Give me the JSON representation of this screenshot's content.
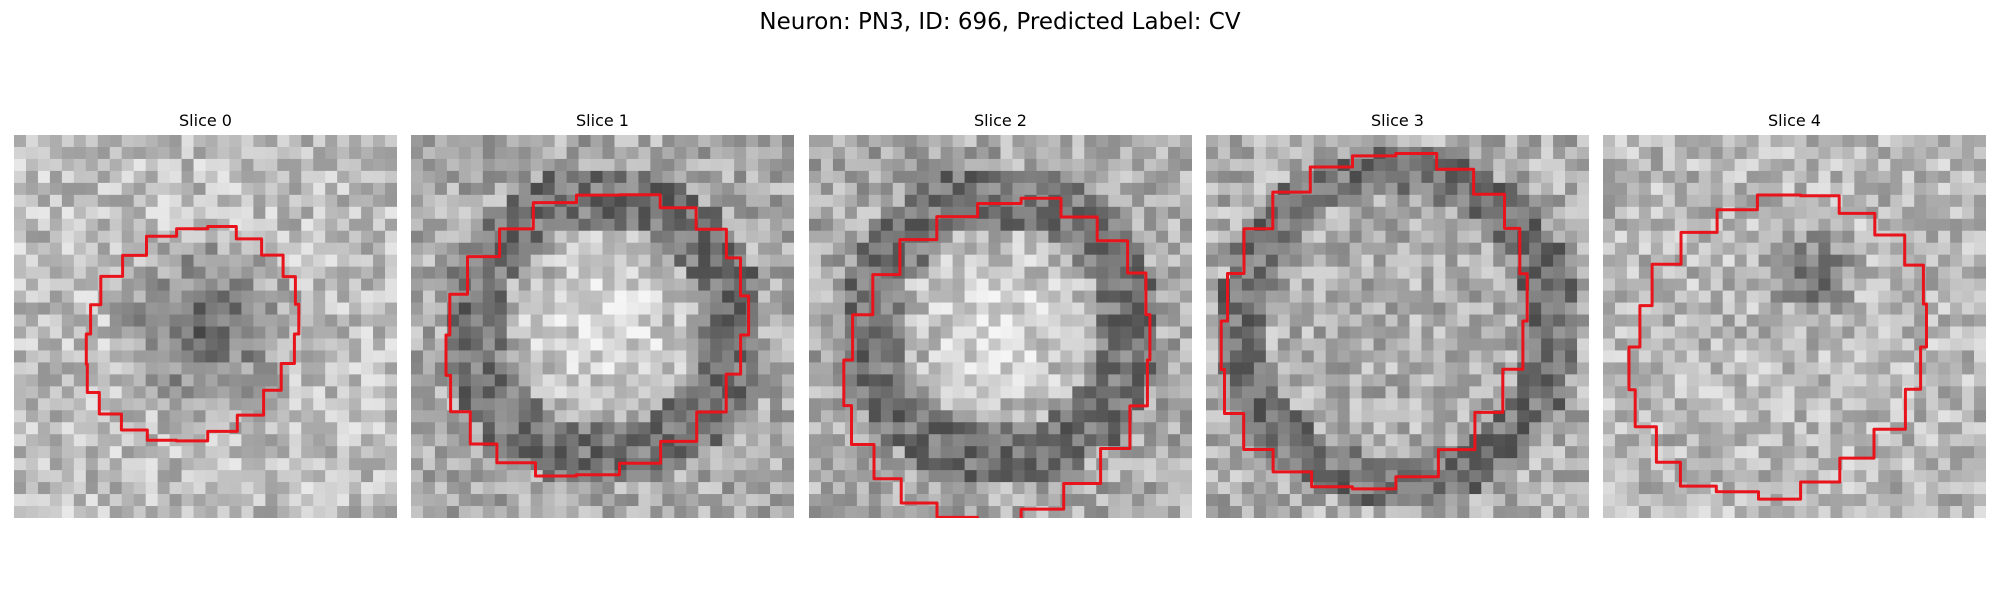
{
  "figure": {
    "title": "Neuron: PN3, ID: 696, Predicted Label: CV",
    "contour_color": "#e8131b"
  },
  "panels": [
    {
      "title": "Slice 0",
      "pattern": "dark-center-blob"
    },
    {
      "title": "Slice 1",
      "pattern": "bright-center-dark-ring"
    },
    {
      "title": "Slice 2",
      "pattern": "bright-center-dark-ring"
    },
    {
      "title": "Slice 3",
      "pattern": "mottled-dark-ring"
    },
    {
      "title": "Slice 4",
      "pattern": "bright-with-dark-spot"
    }
  ]
}
